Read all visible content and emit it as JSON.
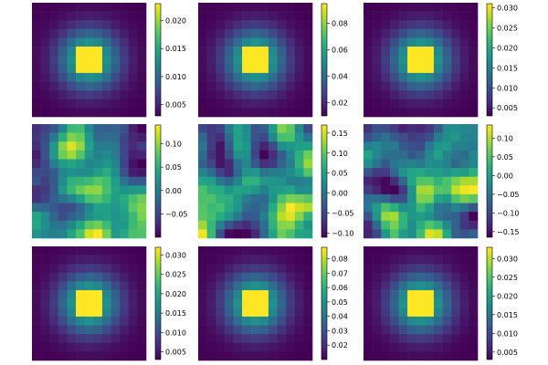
{
  "figure": {
    "rows": 3,
    "cols": 3,
    "colormap": "viridis"
  },
  "chart_data": [
    {
      "type": "heatmap",
      "pattern": "gaussian",
      "grid_size": 13,
      "vmin": 0.003,
      "vmax": 0.023,
      "colorbar_ticks": [
        {
          "value": 0.005,
          "label": "0.005"
        },
        {
          "value": 0.01,
          "label": "0.010"
        },
        {
          "value": 0.015,
          "label": "0.015"
        },
        {
          "value": 0.02,
          "label": "0.020"
        }
      ]
    },
    {
      "type": "heatmap",
      "pattern": "gaussian",
      "grid_size": 13,
      "vmin": 0.01,
      "vmax": 0.095,
      "colorbar_ticks": [
        {
          "value": 0.02,
          "label": "0.02"
        },
        {
          "value": 0.04,
          "label": "0.04"
        },
        {
          "value": 0.06,
          "label": "0.06"
        },
        {
          "value": 0.08,
          "label": "0.08"
        }
      ]
    },
    {
      "type": "heatmap",
      "pattern": "gaussian",
      "grid_size": 13,
      "vmin": 0.003,
      "vmax": 0.031,
      "colorbar_ticks": [
        {
          "value": 0.005,
          "label": "0.005"
        },
        {
          "value": 0.01,
          "label": "0.010"
        },
        {
          "value": 0.015,
          "label": "0.015"
        },
        {
          "value": 0.02,
          "label": "0.020"
        },
        {
          "value": 0.025,
          "label": "0.025"
        },
        {
          "value": 0.03,
          "label": "0.030"
        }
      ]
    },
    {
      "type": "heatmap",
      "pattern": "noise",
      "seed": 11,
      "grid_size": 13,
      "vmin": -0.1,
      "vmax": 0.14,
      "colorbar_ticks": [
        {
          "value": -0.05,
          "label": "−0.05"
        },
        {
          "value": 0.0,
          "label": "0.00"
        },
        {
          "value": 0.05,
          "label": "0.05"
        },
        {
          "value": 0.1,
          "label": "0.10"
        }
      ]
    },
    {
      "type": "heatmap",
      "pattern": "noise",
      "seed": 23,
      "grid_size": 13,
      "vmin": -0.11,
      "vmax": 0.17,
      "colorbar_ticks": [
        {
          "value": -0.1,
          "label": "−0.10"
        },
        {
          "value": -0.05,
          "label": "−0.05"
        },
        {
          "value": 0.0,
          "label": "0.00"
        },
        {
          "value": 0.05,
          "label": "0.05"
        },
        {
          "value": 0.1,
          "label": "0.10"
        },
        {
          "value": 0.15,
          "label": "0.15"
        }
      ]
    },
    {
      "type": "heatmap",
      "pattern": "noise",
      "seed": 37,
      "grid_size": 13,
      "vmin": -0.165,
      "vmax": 0.135,
      "colorbar_ticks": [
        {
          "value": -0.15,
          "label": "−0.15"
        },
        {
          "value": -0.1,
          "label": "−0.10"
        },
        {
          "value": -0.05,
          "label": "−0.05"
        },
        {
          "value": 0.0,
          "label": "0.00"
        },
        {
          "value": 0.05,
          "label": "0.05"
        },
        {
          "value": 0.1,
          "label": "0.10"
        }
      ]
    },
    {
      "type": "heatmap",
      "pattern": "gaussian",
      "grid_size": 13,
      "vmin": 0.003,
      "vmax": 0.032,
      "colorbar_ticks": [
        {
          "value": 0.005,
          "label": "0.005"
        },
        {
          "value": 0.01,
          "label": "0.010"
        },
        {
          "value": 0.015,
          "label": "0.015"
        },
        {
          "value": 0.02,
          "label": "0.020"
        },
        {
          "value": 0.025,
          "label": "0.025"
        },
        {
          "value": 0.03,
          "label": "0.030"
        }
      ]
    },
    {
      "type": "heatmap",
      "pattern": "gaussian",
      "grid_size": 13,
      "vmin": 0.01,
      "vmax": 0.088,
      "colorbar_ticks": [
        {
          "value": 0.02,
          "label": "0.02"
        },
        {
          "value": 0.03,
          "label": "0.03"
        },
        {
          "value": 0.04,
          "label": "0.04"
        },
        {
          "value": 0.05,
          "label": "0.05"
        },
        {
          "value": 0.06,
          "label": "0.06"
        },
        {
          "value": 0.07,
          "label": "0.07"
        },
        {
          "value": 0.08,
          "label": "0.08"
        }
      ]
    },
    {
      "type": "heatmap",
      "pattern": "gaussian",
      "grid_size": 13,
      "vmin": 0.003,
      "vmax": 0.033,
      "colorbar_ticks": [
        {
          "value": 0.005,
          "label": "0.005"
        },
        {
          "value": 0.01,
          "label": "0.010"
        },
        {
          "value": 0.015,
          "label": "0.015"
        },
        {
          "value": 0.02,
          "label": "0.020"
        },
        {
          "value": 0.025,
          "label": "0.025"
        },
        {
          "value": 0.03,
          "label": "0.030"
        }
      ]
    }
  ]
}
